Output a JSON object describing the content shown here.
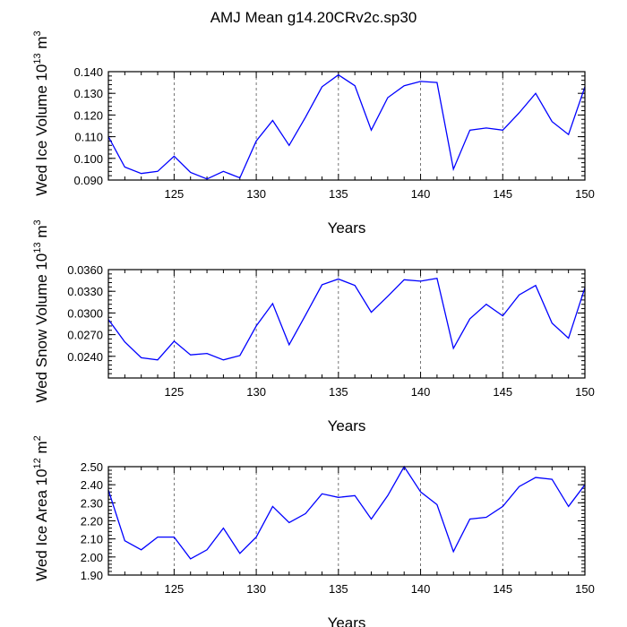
{
  "title": "AMJ Mean g14.20CRv2c.sp30",
  "colors": {
    "line": "#0000ff",
    "axis": "#000000",
    "grid": "#555555"
  },
  "chart_data": [
    {
      "type": "line",
      "ylabel_main": "Wed Ice Volume 10",
      "ylabel_exp1": "13",
      "ylabel_unit": " m",
      "ylabel_exp2": "3",
      "xlabel": "Years",
      "xlim": [
        121,
        150
      ],
      "ylim": [
        0.09,
        0.14
      ],
      "yticks": [
        "0.090",
        "0.100",
        "0.110",
        "0.120",
        "0.130",
        "0.140"
      ],
      "xticks": [
        "125",
        "130",
        "135",
        "140",
        "145",
        "150"
      ],
      "vlines": [
        125,
        130,
        135,
        140,
        145
      ],
      "grid": "vertical dashed",
      "x": [
        121,
        122,
        123,
        124,
        125,
        126,
        127,
        128,
        129,
        130,
        131,
        132,
        133,
        134,
        135,
        136,
        137,
        138,
        139,
        140,
        141,
        142,
        143,
        144,
        145,
        146,
        147,
        148,
        149,
        150
      ],
      "y": [
        0.11,
        0.096,
        0.093,
        0.094,
        0.101,
        0.0935,
        0.0905,
        0.094,
        0.091,
        0.108,
        0.1175,
        0.106,
        0.119,
        0.133,
        0.1385,
        0.1335,
        0.113,
        0.128,
        0.1335,
        0.1355,
        0.135,
        0.095,
        0.113,
        0.114,
        0.113,
        0.121,
        0.13,
        0.117,
        0.111,
        0.133
      ]
    },
    {
      "type": "line",
      "ylabel_main": "Wed Snow Volume 10",
      "ylabel_exp1": "13",
      "ylabel_unit": " m",
      "ylabel_exp2": "3",
      "xlabel": "Years",
      "xlim": [
        121,
        150
      ],
      "ylim": [
        0.021,
        0.036
      ],
      "yticks": [
        "0.0240",
        "0.0270",
        "0.0300",
        "0.0330",
        "0.0360"
      ],
      "xticks": [
        "125",
        "130",
        "135",
        "140",
        "145",
        "150"
      ],
      "vlines": [
        125,
        130,
        135,
        140,
        145
      ],
      "grid": "vertical dashed",
      "x": [
        121,
        122,
        123,
        124,
        125,
        126,
        127,
        128,
        129,
        130,
        131,
        132,
        133,
        134,
        135,
        136,
        137,
        138,
        139,
        140,
        141,
        142,
        143,
        144,
        145,
        146,
        147,
        148,
        149,
        150
      ],
      "y": [
        0.0291,
        0.026,
        0.0238,
        0.0235,
        0.0261,
        0.0242,
        0.0244,
        0.0235,
        0.0241,
        0.0282,
        0.0313,
        0.0256,
        0.0297,
        0.0339,
        0.0347,
        0.0338,
        0.0301,
        0.0323,
        0.0346,
        0.0344,
        0.0348,
        0.0251,
        0.0292,
        0.0312,
        0.0296,
        0.0325,
        0.0338,
        0.0286,
        0.0265,
        0.0335
      ]
    },
    {
      "type": "line",
      "ylabel_main": "Wed Ice Area 10",
      "ylabel_exp1": "12",
      "ylabel_unit": " m",
      "ylabel_exp2": "2",
      "xlabel": "Years",
      "xlim": [
        121,
        150
      ],
      "ylim": [
        1.9,
        2.5
      ],
      "yticks": [
        "1.90",
        "2.00",
        "2.10",
        "2.20",
        "2.30",
        "2.40",
        "2.50"
      ],
      "xticks": [
        "125",
        "130",
        "135",
        "140",
        "145",
        "150"
      ],
      "vlines": [
        125,
        130,
        135,
        140,
        145
      ],
      "grid": "vertical dashed",
      "x": [
        121,
        122,
        123,
        124,
        125,
        126,
        127,
        128,
        129,
        130,
        131,
        132,
        133,
        134,
        135,
        136,
        137,
        138,
        139,
        140,
        141,
        142,
        143,
        144,
        145,
        146,
        147,
        148,
        149,
        150
      ],
      "y": [
        2.37,
        2.09,
        2.04,
        2.11,
        2.11,
        1.99,
        2.04,
        2.16,
        2.02,
        2.11,
        2.28,
        2.19,
        2.24,
        2.35,
        2.33,
        2.34,
        2.21,
        2.34,
        2.5,
        2.36,
        2.29,
        2.03,
        2.21,
        2.22,
        2.28,
        2.39,
        2.44,
        2.43,
        2.28,
        2.4
      ]
    }
  ]
}
